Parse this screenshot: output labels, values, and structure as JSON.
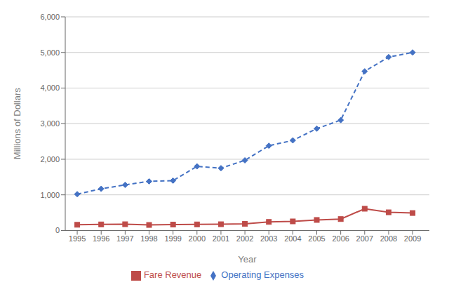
{
  "chart_data": {
    "type": "line",
    "x": [
      1995,
      1996,
      1997,
      1998,
      1999,
      2000,
      2001,
      2002,
      2003,
      2004,
      2005,
      2006,
      2007,
      2008,
      2009
    ],
    "series": [
      {
        "name": "Operating Expenses",
        "color": "#4472C4",
        "values": [
          1020,
          1170,
          1280,
          1380,
          1400,
          1800,
          1750,
          1970,
          2380,
          2530,
          2860,
          3100,
          4470,
          4870,
          5000
        ],
        "marker": "diamond",
        "line_style": "dashed"
      },
      {
        "name": "Fare Revenue",
        "color": "#BE4B48",
        "values": [
          160,
          170,
          175,
          155,
          165,
          170,
          175,
          185,
          240,
          255,
          295,
          320,
          610,
          510,
          490
        ],
        "marker": "square",
        "line_style": "solid"
      }
    ],
    "xlabel": "Year",
    "ylabel": "Millions of Dollars",
    "xlim": [
      1994.5,
      2009.7
    ],
    "xticks": [
      1995,
      1996,
      1997,
      1998,
      1999,
      2000,
      2001,
      2002,
      2003,
      2004,
      2005,
      2006,
      2007,
      2008,
      2009
    ],
    "ylim": [
      0,
      6000
    ],
    "yticks": [
      0,
      {
        "value": 1000,
        "label": "1,000"
      },
      {
        "value": 2000,
        "label": "2,000"
      },
      {
        "value": 3000,
        "label": "3,000"
      },
      {
        "value": 4000,
        "label": "4,000"
      },
      {
        "value": 5000,
        "label": "5,000"
      },
      {
        "value": 6000,
        "label": "6,000"
      }
    ],
    "grid": true,
    "legend": "bottom"
  }
}
